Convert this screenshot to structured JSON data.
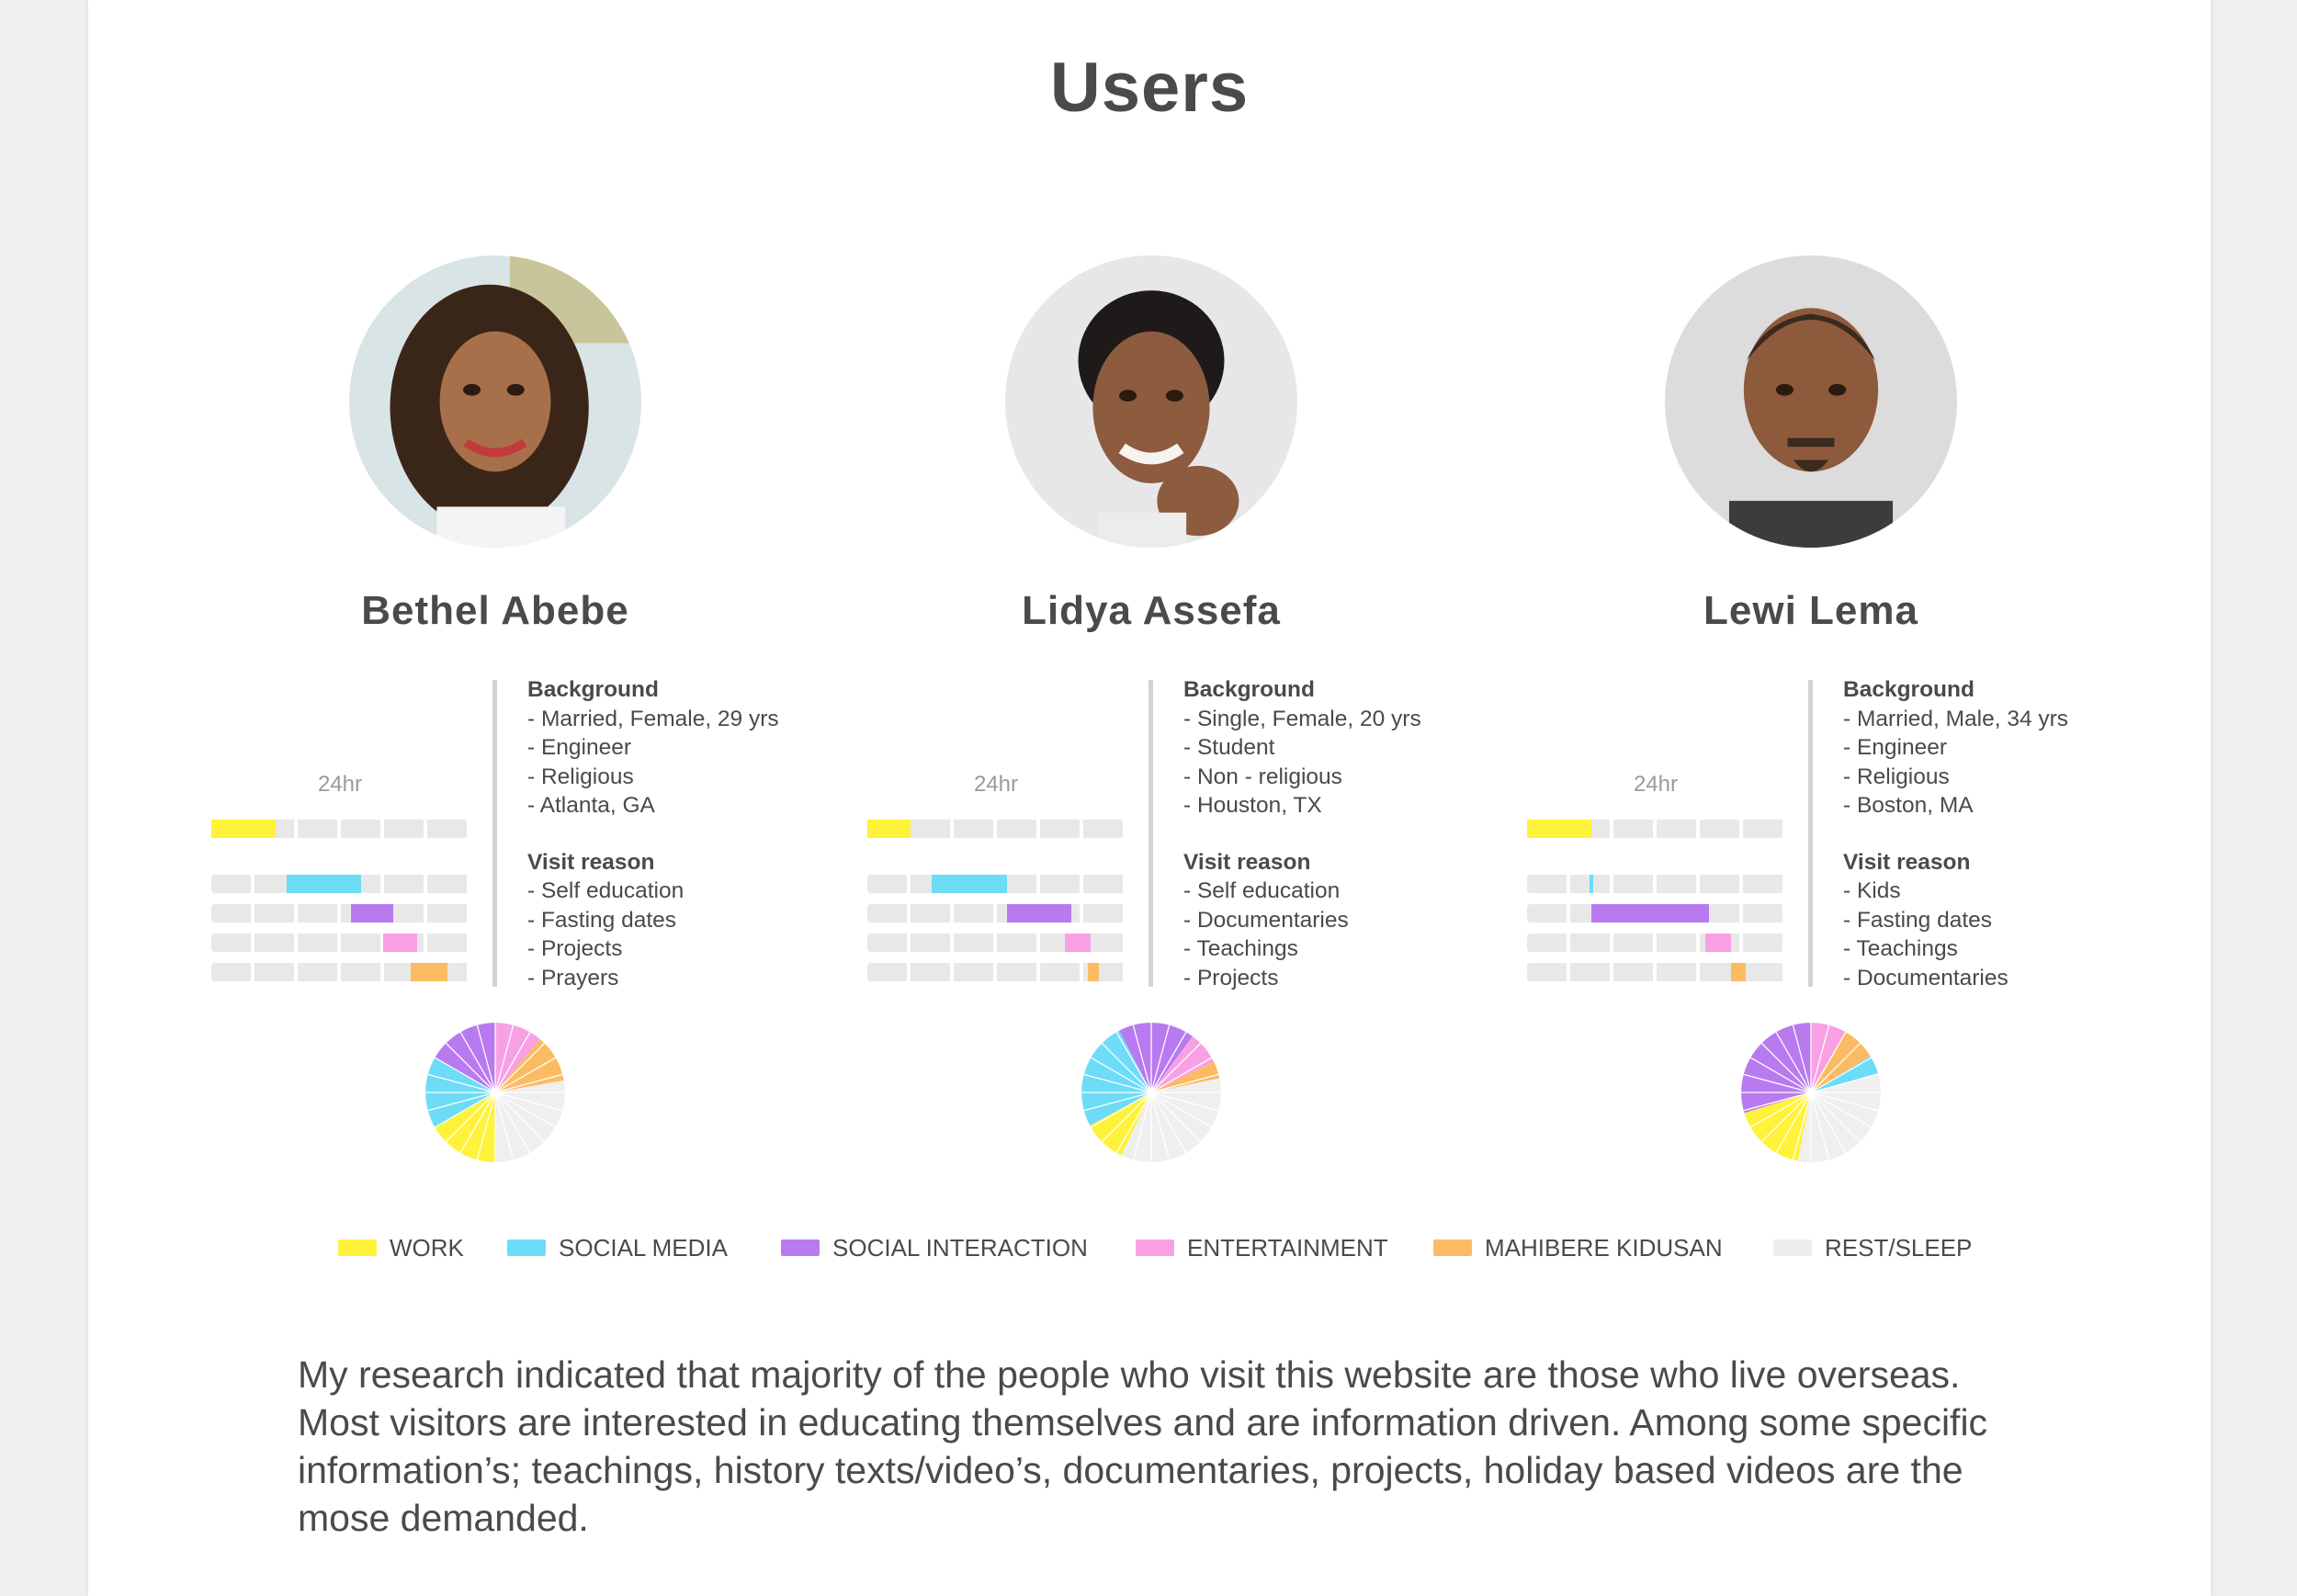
{
  "page": {
    "title": "Users"
  },
  "colors": {
    "work": "#fff23a",
    "social_media": "#6ddcf7",
    "social_interaction": "#b97af0",
    "entertainment": "#f7a1e4",
    "mahibere_kidusan": "#fbbb62",
    "rest_sleep": "#efefef"
  },
  "users": [
    {
      "name": "Bethel Abebe",
      "avatar_icon": "woman-portrait-photo",
      "hours_label": "24hr",
      "background_heading": "Background",
      "background": [
        "- Married, Female, 29 yrs",
        "- Engineer",
        "- Religious",
        "- Atlanta, GA"
      ],
      "visit_heading": "Visit reason",
      "visit_reasons": [
        "- Self education",
        "- Fasting dates",
        "- Projects",
        "- Prayers"
      ],
      "timeline": [
        {
          "category": "work",
          "start": 0,
          "end": 3
        },
        {
          "category": "social_media",
          "start": 3.5,
          "end": 7
        },
        {
          "category": "social_interaction",
          "start": 6.5,
          "end": 8.5
        },
        {
          "category": "entertainment",
          "start": 8,
          "end": 9.6
        },
        {
          "category": "mahibere_kidusan",
          "start": 9.3,
          "end": 11
        }
      ],
      "pie": [
        {
          "category": "entertainment",
          "value": 2
        },
        {
          "category": "mahibere_kidusan",
          "value": 2
        },
        {
          "category": "rest_sleep",
          "value": 5
        },
        {
          "category": "work",
          "value": 3
        },
        {
          "category": "social_media",
          "value": 3
        },
        {
          "category": "social_interaction",
          "value": 3
        }
      ]
    },
    {
      "name": "Lidya Assefa",
      "avatar_icon": "woman-portrait-photo",
      "hours_label": "24hr",
      "background_heading": "Background",
      "background": [
        "- Single, Female, 20 yrs",
        "- Student",
        "- Non - religious",
        "- Houston, TX"
      ],
      "visit_heading": "Visit reason",
      "visit_reasons": [
        "- Self education",
        "- Documentaries",
        "- Teachings",
        "- Projects"
      ],
      "timeline": [
        {
          "category": "work",
          "start": 0,
          "end": 2
        },
        {
          "category": "social_media",
          "start": 3,
          "end": 6.5
        },
        {
          "category": "social_interaction",
          "start": 6.5,
          "end": 9.5
        },
        {
          "category": "entertainment",
          "start": 9.2,
          "end": 10.4
        },
        {
          "category": "mahibere_kidusan",
          "start": 10.3,
          "end": 10.8
        }
      ],
      "pie": [
        {
          "category": "social_interaction",
          "value": 2
        },
        {
          "category": "entertainment",
          "value": 1.5
        },
        {
          "category": "mahibere_kidusan",
          "value": 0.8
        },
        {
          "category": "rest_sleep",
          "value": 7
        },
        {
          "category": "work",
          "value": 2
        },
        {
          "category": "social_media",
          "value": 5
        },
        {
          "category": "social_interaction",
          "value": 1.5
        }
      ]
    },
    {
      "name": "Lewi Lema",
      "avatar_icon": "man-portrait-photo",
      "hours_label": "24hr",
      "background_heading": "Background",
      "background": [
        "- Married, Male, 34 yrs",
        "- Engineer",
        "- Religious",
        "- Boston, MA"
      ],
      "visit_heading": "Visit reason",
      "visit_reasons": [
        "- Kids",
        "- Fasting dates",
        "- Teachings",
        "- Documentaries"
      ],
      "timeline": [
        {
          "category": "work",
          "start": 0,
          "end": 3
        },
        {
          "category": "social_media",
          "start": 2.9,
          "end": 3.1
        },
        {
          "category": "social_interaction",
          "start": 3,
          "end": 8.5
        },
        {
          "category": "entertainment",
          "start": 8.3,
          "end": 9.5
        },
        {
          "category": "mahibere_kidusan",
          "start": 9.5,
          "end": 10.2
        }
      ],
      "pie": [
        {
          "category": "entertainment",
          "value": 1.5
        },
        {
          "category": "mahibere_kidusan",
          "value": 1.5
        },
        {
          "category": "social_media",
          "value": 0.8
        },
        {
          "category": "rest_sleep",
          "value": 6
        },
        {
          "category": "work",
          "value": 3.2
        },
        {
          "category": "social_interaction",
          "value": 5.5
        }
      ]
    }
  ],
  "legend": [
    {
      "category": "work",
      "label": "WORK"
    },
    {
      "category": "social_media",
      "label": "SOCIAL MEDIA"
    },
    {
      "category": "social_interaction",
      "label": "SOCIAL INTERACTION"
    },
    {
      "category": "entertainment",
      "label": "ENTERTAINMENT"
    },
    {
      "category": "mahibere_kidusan",
      "label": "MAHIBERE KIDUSAN"
    },
    {
      "category": "rest_sleep",
      "label": "REST/SLEEP"
    }
  ],
  "summary": "My research indicated that majority of the people who visit this website are those who live overseas. Most visitors are interested in educating themselves and are information driven. Among some specific information’s; teachings, history texts/video’s, documentaries, projects, holiday based videos are the mose demanded."
}
